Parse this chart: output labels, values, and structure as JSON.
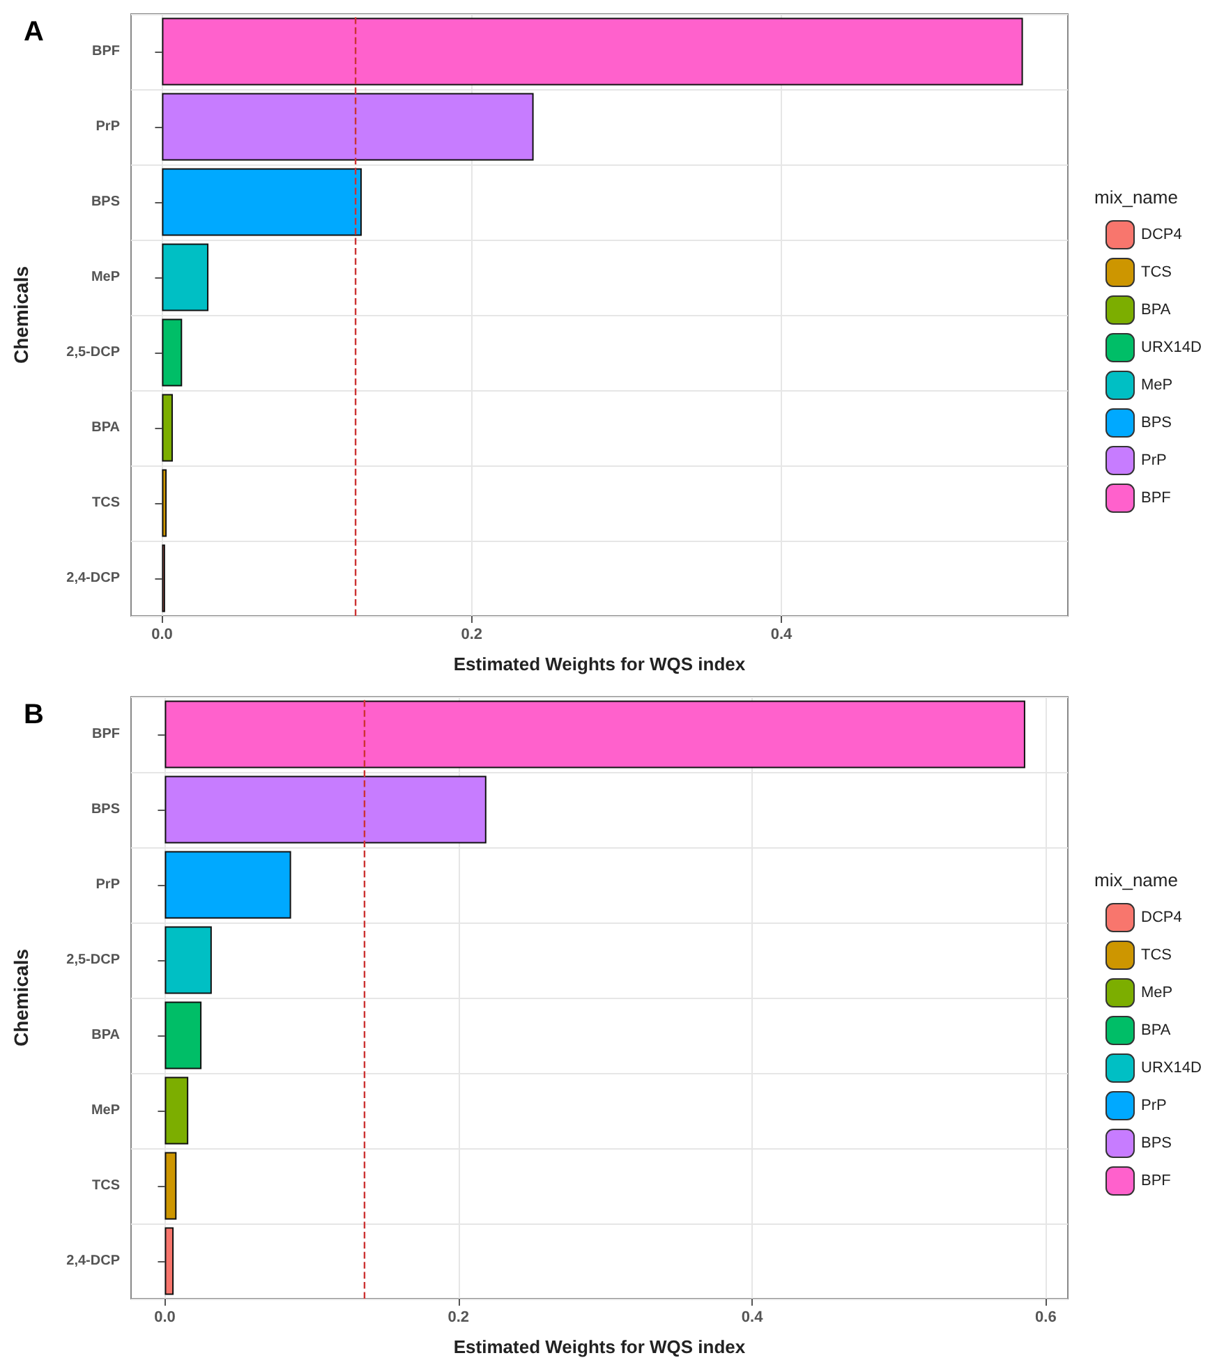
{
  "chart_data": [
    {
      "type": "bar",
      "title": "A",
      "xlabel": "Estimated Weights for WQS index",
      "ylabel": "Chemicals",
      "legend_title": "mix_name",
      "orientation": "horizontal",
      "categories": [
        "BPF",
        "PrP",
        "BPS",
        "MeP",
        "2,5-DCP",
        "BPA",
        "TCS",
        "2,4-DCP"
      ],
      "series": [
        {
          "name": "DCP4",
          "color": "#f8766d",
          "values": [
            null,
            null,
            null,
            null,
            null,
            null,
            null,
            0.002
          ]
        },
        {
          "name": "TCS",
          "color": "#cd9600",
          "values": [
            null,
            null,
            null,
            null,
            null,
            null,
            0.003,
            null
          ]
        },
        {
          "name": "BPA",
          "color": "#7cae00",
          "values": [
            null,
            null,
            null,
            null,
            null,
            0.007,
            null,
            null
          ]
        },
        {
          "name": "URX14D",
          "color": "#00be67",
          "values": [
            null,
            null,
            null,
            null,
            0.013,
            null,
            null,
            null
          ]
        },
        {
          "name": "MeP",
          "color": "#00bfc4",
          "values": [
            null,
            null,
            null,
            0.03,
            null,
            null,
            null,
            null
          ]
        },
        {
          "name": "BPS",
          "color": "#00a9ff",
          "values": [
            null,
            null,
            0.129,
            null,
            null,
            null,
            null,
            null
          ]
        },
        {
          "name": "PrP",
          "color": "#c77cff",
          "values": [
            null,
            0.24,
            null,
            null,
            null,
            null,
            null,
            null
          ]
        },
        {
          "name": "BPF",
          "color": "#ff61cc",
          "values": [
            0.556,
            null,
            null,
            null,
            null,
            null,
            null,
            null
          ]
        }
      ],
      "xlim": [
        -0.02,
        0.585
      ],
      "xticks": [
        {
          "value": 0,
          "label": "0.0"
        },
        0.2,
        0.4
      ],
      "ref_lines": [
        {
          "axis": "x",
          "value": 0.125,
          "color": "#cc3333",
          "line_style": "dashed"
        }
      ],
      "grid": true,
      "legend": "right"
    },
    {
      "type": "bar",
      "title": "B",
      "xlabel": "Estimated Weights for WQS index",
      "ylabel": "Chemicals",
      "legend_title": "mix_name",
      "orientation": "horizontal",
      "categories": [
        "BPF",
        "BPS",
        "PrP",
        "2,5-DCP",
        "BPA",
        "MeP",
        "TCS",
        "2,4-DCP"
      ],
      "series": [
        {
          "name": "DCP4",
          "color": "#f8766d",
          "values": [
            null,
            null,
            null,
            null,
            null,
            null,
            null,
            0.006
          ]
        },
        {
          "name": "TCS",
          "color": "#cd9600",
          "values": [
            null,
            null,
            null,
            null,
            null,
            null,
            0.008,
            null
          ]
        },
        {
          "name": "MeP",
          "color": "#7cae00",
          "values": [
            null,
            null,
            null,
            null,
            null,
            0.016,
            null,
            null
          ]
        },
        {
          "name": "BPA",
          "color": "#00be67",
          "values": [
            null,
            null,
            null,
            null,
            0.025,
            null,
            null,
            null
          ]
        },
        {
          "name": "URX14D",
          "color": "#00bfc4",
          "values": [
            null,
            null,
            null,
            0.032,
            null,
            null,
            null,
            null
          ]
        },
        {
          "name": "PrP",
          "color": "#00a9ff",
          "values": [
            null,
            null,
            0.086,
            null,
            null,
            null,
            null,
            null
          ]
        },
        {
          "name": "BPS",
          "color": "#c77cff",
          "values": [
            null,
            0.219,
            null,
            null,
            null,
            null,
            null,
            null
          ]
        },
        {
          "name": "BPF",
          "color": "#ff61cc",
          "values": [
            0.586,
            null,
            null,
            null,
            null,
            null,
            null,
            null
          ]
        }
      ],
      "xlim": [
        -0.023,
        0.615
      ],
      "xticks": [
        {
          "value": 0,
          "label": "0.0"
        },
        0.2,
        0.4,
        0.6
      ],
      "ref_lines": [
        {
          "axis": "x",
          "value": 0.136,
          "color": "#cc3333",
          "line_style": "dashed"
        }
      ],
      "grid": true,
      "legend": "right"
    }
  ]
}
